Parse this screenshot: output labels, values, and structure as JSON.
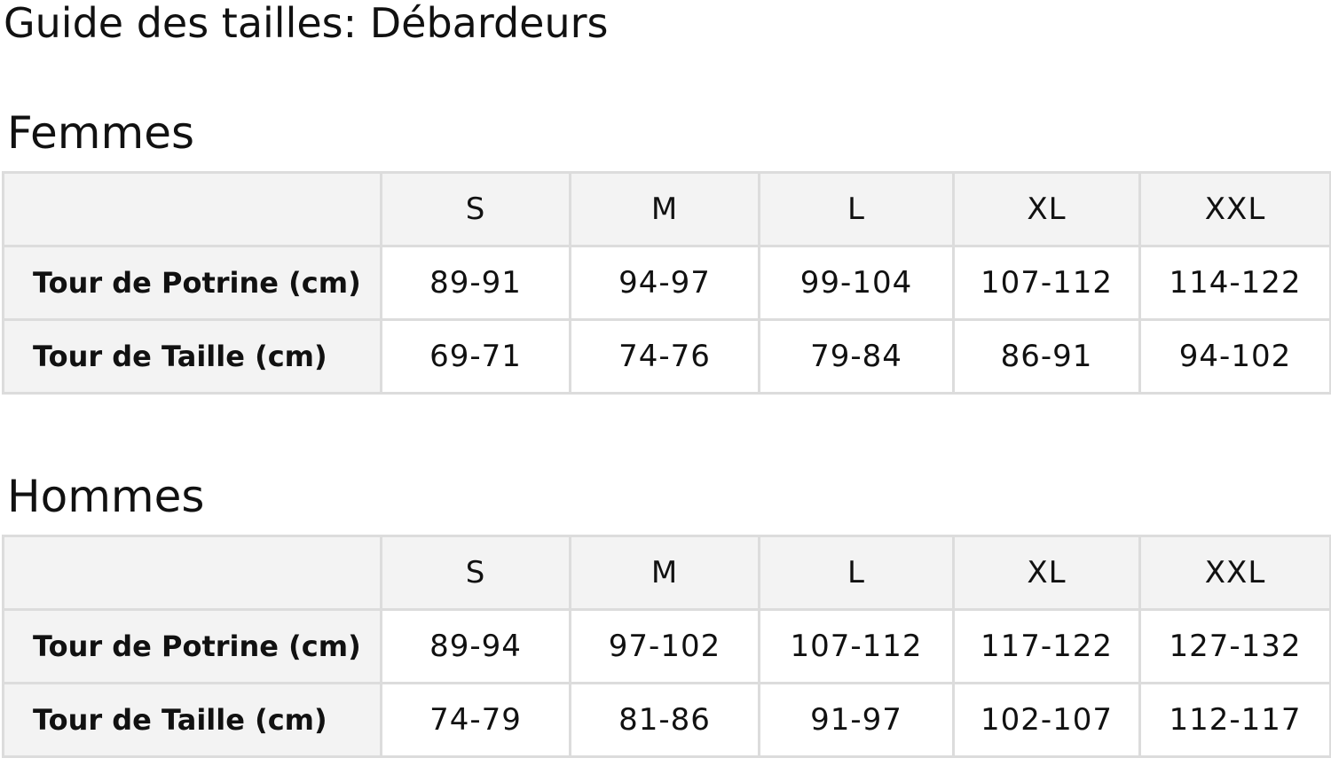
{
  "title": "Guide des tailles: Débardeurs",
  "tables": [
    {
      "heading": "Femmes",
      "sizes": [
        "S",
        "M",
        "L",
        "XL",
        "XXL"
      ],
      "rows": [
        {
          "label": "Tour de Potrine (cm)",
          "values": [
            "89-91",
            "94-97",
            "99-104",
            "107-112",
            "114-122"
          ]
        },
        {
          "label": "Tour de Taille (cm)",
          "values": [
            "69-71",
            "74-76",
            "79-84",
            "86-91",
            "94-102"
          ]
        }
      ]
    },
    {
      "heading": "Hommes",
      "sizes": [
        "S",
        "M",
        "L",
        "XL",
        "XXL"
      ],
      "rows": [
        {
          "label": "Tour de Potrine (cm)",
          "values": [
            "89-94",
            "97-102",
            "107-112",
            "117-122",
            "127-132"
          ]
        },
        {
          "label": "Tour de Taille (cm)",
          "values": [
            "74-79",
            "81-86",
            "91-97",
            "102-107",
            "112-117"
          ]
        }
      ]
    }
  ]
}
